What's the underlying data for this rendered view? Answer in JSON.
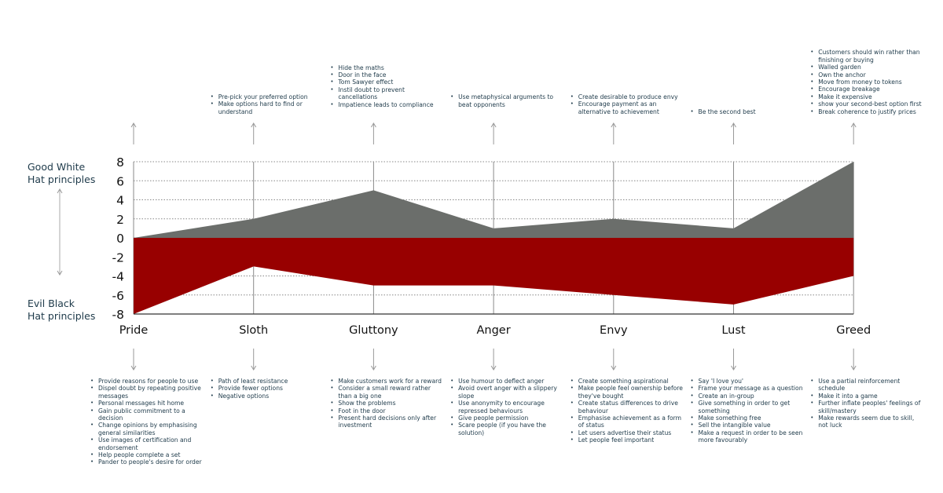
{
  "side_labels": {
    "good_line1": "Good White",
    "good_line2": "Hat principles",
    "evil_line1": "Evil Black",
    "evil_line2": "Hat principles"
  },
  "chart_data": {
    "type": "area",
    "categories": [
      "Pride",
      "Sloth",
      "Gluttony",
      "Anger",
      "Envy",
      "Lust",
      "Greed"
    ],
    "series": [
      {
        "values": [
          0,
          2,
          5,
          1,
          2,
          1,
          8
        ],
        "color": "#6b6e6b"
      },
      {
        "values": [
          -8,
          -3,
          -5,
          -5,
          -6,
          -7,
          -4
        ],
        "color": "#980000"
      }
    ],
    "yticks": [
      "8",
      "6",
      "4",
      "2",
      "0",
      "-2",
      "-4",
      "-6",
      "-8"
    ],
    "ylim": [
      -8,
      8
    ],
    "grid": "horizontal dotted"
  },
  "good_notes": [
    [],
    [
      "Pre-pick your preferred option",
      "Make options hard to find or understand"
    ],
    [
      "Hide the maths",
      "Door in the face",
      "Tom Sawyer effect",
      "Instil doubt to prevent cancellations",
      "Impatience leads to compliance"
    ],
    [
      "Use metaphysical arguments to beat opponents"
    ],
    [
      "Create desirable to produce envy",
      "Encourage payment as an alternative to achievement"
    ],
    [
      "Be the second best"
    ],
    [
      "Customers should win rather than finishing or buying",
      "Walled garden",
      "Own the anchor",
      "Move from money to tokens",
      "Encourage breakage",
      "Make it expensive",
      "show your second-best option first",
      "Break coherence to justify prices"
    ]
  ],
  "evil_notes": [
    [
      "Provide reasons for people to use",
      "Dispel doubt by repeating positive messages",
      "Personal messages hit home",
      "Gain public commitment to a decision",
      "Change opinions by emphasising general similarities",
      "Use images of certification and endorsement",
      "Help people complete a set",
      "Pander to people's desire for order"
    ],
    [
      "Path of least resistance",
      "Provide fewer options",
      "Negative options"
    ],
    [
      "Make customers work for a reward",
      "Consider a small reward rather than a big one",
      "Show the problems",
      "Foot in the door",
      "Present hard decisions only after investment"
    ],
    [
      "Use humour to deflect anger",
      "Avoid overt anger with a slippery slope",
      "Use anonymity to encourage repressed behaviours",
      "Give people permission",
      "Scare people (if you have the solution)"
    ],
    [
      "Create something aspirational",
      "Make people feel ownership before they've bought",
      "Create status differences to drive behaviour",
      "Emphasise achievement as a form of status",
      "Let users advertise their status",
      "Let people feel important"
    ],
    [
      "Say 'I love you'",
      "Frame your message as a question",
      "Create an in-group",
      "Give something in order to get something",
      "Make something free",
      "Sell the intangible value",
      "Make a request in order to be seen more favourably"
    ],
    [
      "Use a partial reinforcement schedule",
      "Make it into a game",
      "Further inflate peoples' feelings of skill/mastery",
      "Make rewards seem due to skill, not luck"
    ]
  ]
}
